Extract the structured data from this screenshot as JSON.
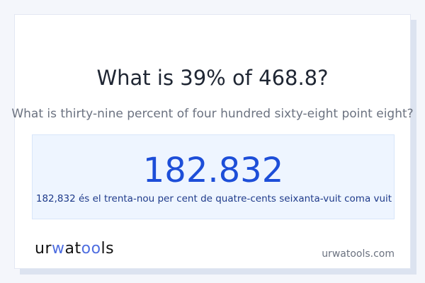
{
  "question": {
    "title": "What is 39% of 468.8?",
    "subtitle": "What is thirty-nine percent of four hundred sixty-eight point eight?"
  },
  "result": {
    "value": "182.832",
    "words": "182,832 és el trenta-nou per cent de quatre-cents seixanta-vuit coma vuit"
  },
  "footer": {
    "logo": "urwatools",
    "domain": "urwatools.com"
  },
  "colors": {
    "accent": "#1d4ed8",
    "logo_accent": "#4f6ee0",
    "result_bg": "#eef5ff"
  }
}
